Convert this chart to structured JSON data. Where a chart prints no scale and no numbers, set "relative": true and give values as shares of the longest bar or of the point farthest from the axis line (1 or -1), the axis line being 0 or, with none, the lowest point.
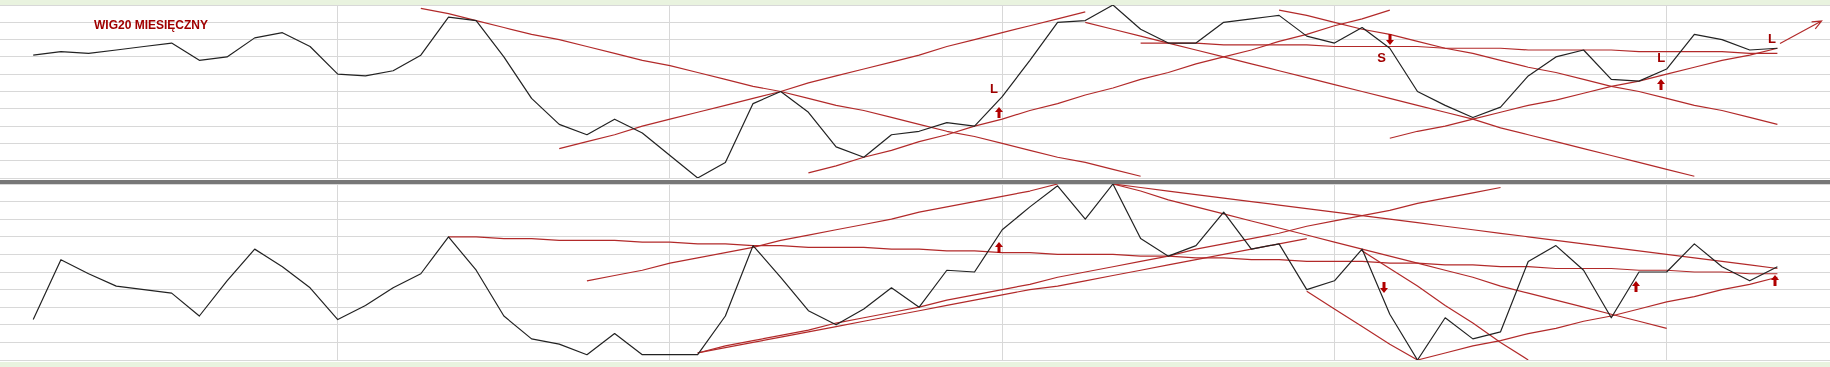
{
  "chart_data": [
    {
      "type": "line",
      "title": "WIG20  MIESIĘCZNY",
      "relative": true,
      "grid": true,
      "legend": false,
      "marker": "none",
      "categories": [
        null,
        null,
        null,
        null,
        null,
        null,
        null,
        null,
        null,
        null,
        null,
        null,
        null,
        null,
        null,
        null,
        null,
        null,
        null,
        null,
        null,
        null,
        null,
        null,
        null,
        null,
        null,
        null,
        null,
        null,
        null,
        null,
        null,
        null,
        null,
        null,
        null,
        null,
        null,
        null,
        null,
        null,
        null,
        null,
        null,
        null,
        null,
        null,
        null,
        null,
        null,
        null,
        null,
        null,
        null,
        null,
        null,
        null,
        null,
        null,
        null,
        null,
        null,
        null
      ],
      "series": [
        {
          "color": "#222222",
          "values": [
            0.71,
            0.73,
            0.72,
            0.74,
            0.76,
            0.78,
            0.68,
            0.7,
            0.81,
            0.84,
            0.76,
            0.6,
            0.59,
            0.62,
            0.71,
            0.93,
            0.91,
            0.7,
            0.46,
            0.31,
            0.25,
            0.34,
            0.26,
            0.13,
            0,
            0.09,
            0.43,
            0.5,
            0.38,
            0.18,
            0.12,
            0.25,
            0.27,
            0.32,
            0.3,
            0.47,
            0.68,
            0.9,
            0.91,
            1,
            0.86,
            0.78,
            0.78,
            0.9,
            0.92,
            0.94,
            0.82,
            0.78,
            0.87,
            0.75,
            0.5,
            0.42,
            0.35,
            0.41,
            0.59,
            0.7,
            0.74,
            0.57,
            0.56,
            0.63,
            0.83,
            0.8,
            0.74,
            0.75
          ]
        },
        {
          "type": "line",
          "color": "#b22a2a",
          "values": [
            null,
            null,
            null,
            null,
            null,
            null,
            null,
            null,
            null,
            null,
            null,
            null,
            null,
            null,
            0.98,
            0.95,
            0.91,
            0.87,
            0.83,
            0.8,
            0.76,
            0.72,
            0.68,
            0.65,
            0.61,
            0.57,
            0.53,
            0.5,
            0.46,
            0.42,
            0.39,
            0.35,
            0.31,
            0.27,
            0.24,
            0.2,
            0.16,
            0.12,
            0.09,
            0.05,
            0.01,
            null,
            null,
            null,
            null,
            null,
            null,
            null,
            null,
            null,
            null,
            null,
            null,
            null,
            null,
            null,
            null,
            null,
            null,
            null,
            null,
            null,
            null,
            null
          ]
        },
        {
          "type": "line",
          "color": "#b22a2a",
          "values": [
            null,
            null,
            null,
            null,
            null,
            null,
            null,
            null,
            null,
            null,
            null,
            null,
            null,
            null,
            null,
            null,
            null,
            null,
            null,
            0.17,
            0.21,
            0.25,
            0.3,
            0.34,
            0.38,
            0.42,
            0.46,
            0.5,
            0.55,
            0.59,
            0.63,
            0.67,
            0.71,
            0.76,
            0.8,
            0.84,
            0.88,
            0.92,
            0.96,
            null,
            null,
            null,
            null,
            null,
            null,
            null,
            null,
            null,
            null,
            null,
            null,
            null,
            null,
            null,
            null,
            null,
            null,
            null,
            null,
            null,
            null,
            null,
            null,
            null
          ]
        },
        {
          "type": "line",
          "color": "#b22a2a",
          "values": [
            null,
            null,
            null,
            null,
            null,
            null,
            null,
            null,
            null,
            null,
            null,
            null,
            null,
            null,
            null,
            null,
            null,
            null,
            null,
            null,
            null,
            null,
            null,
            null,
            null,
            null,
            null,
            null,
            0.03,
            0.07,
            0.12,
            0.16,
            0.21,
            0.25,
            0.3,
            0.34,
            0.39,
            0.43,
            0.48,
            0.52,
            0.57,
            0.61,
            0.66,
            0.7,
            0.74,
            0.79,
            0.83,
            0.88,
            0.92,
            0.97,
            null,
            null,
            null,
            null,
            null,
            null,
            null,
            null,
            null,
            null,
            null,
            null,
            null,
            null
          ]
        },
        {
          "type": "line",
          "color": "#b22a2a",
          "values": [
            null,
            null,
            null,
            null,
            null,
            null,
            null,
            null,
            null,
            null,
            null,
            null,
            null,
            null,
            null,
            null,
            null,
            null,
            null,
            null,
            null,
            null,
            null,
            null,
            null,
            null,
            null,
            null,
            null,
            null,
            null,
            null,
            null,
            null,
            null,
            null,
            null,
            null,
            0.9,
            0.86,
            0.82,
            0.78,
            0.74,
            0.7,
            0.66,
            0.62,
            0.58,
            0.54,
            0.5,
            0.46,
            0.42,
            0.38,
            0.34,
            0.29,
            0.25,
            0.21,
            0.17,
            0.13,
            0.09,
            0.05,
            0.01,
            null,
            null,
            null
          ]
        },
        {
          "type": "line",
          "color": "#b22a2a",
          "values": [
            null,
            null,
            null,
            null,
            null,
            null,
            null,
            null,
            null,
            null,
            null,
            null,
            null,
            null,
            null,
            null,
            null,
            null,
            null,
            null,
            null,
            null,
            null,
            null,
            null,
            null,
            null,
            null,
            null,
            null,
            null,
            null,
            null,
            null,
            null,
            null,
            null,
            null,
            null,
            null,
            null,
            null,
            null,
            null,
            null,
            0.97,
            0.94,
            0.9,
            0.86,
            0.83,
            0.79,
            0.75,
            0.72,
            0.68,
            0.64,
            0.61,
            0.57,
            0.53,
            0.5,
            0.46,
            0.42,
            0.39,
            0.35,
            0.31
          ]
        },
        {
          "type": "line",
          "color": "#b22a2a",
          "values": [
            null,
            null,
            null,
            null,
            null,
            null,
            null,
            null,
            null,
            null,
            null,
            null,
            null,
            null,
            null,
            null,
            null,
            null,
            null,
            null,
            null,
            null,
            null,
            null,
            null,
            null,
            null,
            null,
            null,
            null,
            null,
            null,
            null,
            null,
            null,
            null,
            null,
            null,
            null,
            null,
            0.78,
            0.78,
            0.78,
            0.77,
            0.77,
            0.77,
            0.77,
            0.76,
            0.76,
            0.76,
            0.76,
            0.75,
            0.75,
            0.75,
            0.74,
            0.74,
            0.74,
            0.74,
            0.73,
            0.73,
            0.73,
            0.73,
            0.72,
            0.72
          ]
        },
        {
          "type": "line",
          "color": "#b22a2a",
          "values": [
            null,
            null,
            null,
            null,
            null,
            null,
            null,
            null,
            null,
            null,
            null,
            null,
            null,
            null,
            null,
            null,
            null,
            null,
            null,
            null,
            null,
            null,
            null,
            null,
            null,
            null,
            null,
            null,
            null,
            null,
            null,
            null,
            null,
            null,
            null,
            null,
            null,
            null,
            null,
            null,
            null,
            null,
            null,
            null,
            null,
            null,
            null,
            null,
            null,
            0.23,
            0.27,
            0.3,
            0.34,
            0.38,
            0.42,
            0.45,
            0.49,
            0.53,
            0.56,
            0.6,
            0.64,
            0.68,
            0.71,
            0.75
          ]
        }
      ],
      "annotations": [
        "L",
        "S",
        "L",
        "L"
      ]
    },
    {
      "type": "line",
      "relative": true,
      "grid": true,
      "legend": false,
      "marker": "none",
      "categories": [
        null,
        null,
        null,
        null,
        null,
        null,
        null,
        null,
        null,
        null,
        null,
        null,
        null,
        null,
        null,
        null,
        null,
        null,
        null,
        null,
        null,
        null,
        null,
        null,
        null,
        null,
        null,
        null,
        null,
        null,
        null,
        null,
        null,
        null,
        null,
        null,
        null,
        null,
        null,
        null,
        null,
        null,
        null,
        null,
        null,
        null,
        null,
        null,
        null,
        null,
        null,
        null,
        null,
        null,
        null,
        null,
        null,
        null,
        null,
        null,
        null,
        null,
        null,
        null
      ],
      "series": [
        {
          "color": "#222222",
          "values": [
            0.23,
            0.57,
            0.49,
            0.42,
            0.4,
            0.38,
            0.25,
            0.45,
            0.63,
            0.53,
            0.41,
            0.23,
            0.31,
            0.41,
            0.49,
            0.7,
            0.51,
            0.25,
            0.12,
            0.09,
            0.03,
            0.15,
            0.03,
            0.03,
            0.03,
            0.25,
            0.65,
            0.47,
            0.28,
            0.2,
            0.29,
            0.41,
            0.3,
            0.51,
            0.5,
            0.74,
            0.87,
            0.99,
            0.8,
            1,
            0.69,
            0.59,
            0.65,
            0.84,
            0.63,
            0.66,
            0.4,
            0.45,
            0.63,
            0.26,
            0,
            0.24,
            0.12,
            0.16,
            0.56,
            0.65,
            0.51,
            0.24,
            0.5,
            0.5,
            0.66,
            0.53,
            0.45,
            0.53
          ]
        },
        {
          "type": "line",
          "color": "#b22a2a",
          "values": [
            null,
            null,
            null,
            null,
            null,
            null,
            null,
            null,
            null,
            null,
            null,
            null,
            null,
            null,
            null,
            0.7,
            0.7,
            0.69,
            0.69,
            0.68,
            0.68,
            0.68,
            0.67,
            0.67,
            0.66,
            0.66,
            0.65,
            0.65,
            0.64,
            0.64,
            0.64,
            0.63,
            0.63,
            0.62,
            0.62,
            0.61,
            0.61,
            0.6,
            0.6,
            0.6,
            0.59,
            0.59,
            0.58,
            0.58,
            0.57,
            0.57,
            0.56,
            0.56,
            0.56,
            0.55,
            0.55,
            0.54,
            0.54,
            0.53,
            0.53,
            0.52,
            0.52,
            0.52,
            0.51,
            0.51,
            0.5,
            0.5,
            0.49,
            0.49
          ]
        },
        {
          "type": "line",
          "color": "#b22a2a",
          "values": [
            null,
            null,
            null,
            null,
            null,
            null,
            null,
            null,
            null,
            null,
            null,
            null,
            null,
            null,
            null,
            null,
            null,
            null,
            null,
            null,
            0.45,
            0.48,
            0.51,
            0.55,
            0.58,
            0.61,
            0.64,
            0.68,
            0.71,
            0.74,
            0.77,
            0.8,
            0.84,
            0.87,
            0.9,
            0.93,
            0.96,
            1.0,
            null,
            null,
            null,
            null,
            null,
            null,
            null,
            null,
            null,
            null,
            null,
            null,
            null,
            null,
            null,
            null,
            null,
            null,
            null,
            null,
            null,
            null,
            null,
            null,
            null,
            null
          ]
        },
        {
          "type": "line",
          "color": "#b22a2a",
          "values": [
            null,
            null,
            null,
            null,
            null,
            null,
            null,
            null,
            null,
            null,
            null,
            null,
            null,
            null,
            null,
            null,
            null,
            null,
            null,
            null,
            null,
            null,
            null,
            null,
            0.04,
            0.07,
            0.1,
            0.13,
            0.16,
            0.19,
            0.22,
            0.25,
            0.28,
            0.31,
            0.34,
            0.37,
            0.4,
            0.42,
            0.45,
            0.48,
            0.51,
            0.54,
            0.57,
            0.6,
            0.63,
            0.66,
            0.69,
            null,
            null,
            null,
            null,
            null,
            null,
            null,
            null,
            null,
            null,
            null,
            null,
            null,
            null,
            null,
            null,
            null
          ]
        },
        {
          "type": "line",
          "color": "#b22a2a",
          "values": [
            null,
            null,
            null,
            null,
            null,
            null,
            null,
            null,
            null,
            null,
            null,
            null,
            null,
            null,
            null,
            null,
            null,
            null,
            null,
            null,
            null,
            null,
            null,
            null,
            0.04,
            0.08,
            0.11,
            0.14,
            0.17,
            0.21,
            0.24,
            0.27,
            0.3,
            0.34,
            0.37,
            0.4,
            0.43,
            0.47,
            0.5,
            0.53,
            0.56,
            0.59,
            0.63,
            0.66,
            0.69,
            0.72,
            0.76,
            0.79,
            0.82,
            0.85,
            0.89,
            0.92,
            0.95,
            0.98,
            null,
            null,
            null,
            null,
            null,
            null,
            null,
            null,
            null,
            null
          ]
        },
        {
          "type": "line",
          "color": "#b22a2a",
          "values": [
            null,
            null,
            null,
            null,
            null,
            null,
            null,
            null,
            null,
            null,
            null,
            null,
            null,
            null,
            null,
            null,
            null,
            null,
            null,
            null,
            null,
            null,
            null,
            null,
            null,
            null,
            null,
            null,
            null,
            null,
            null,
            null,
            null,
            null,
            null,
            null,
            null,
            null,
            null,
            1.0,
            0.98,
            0.96,
            0.94,
            0.92,
            0.9,
            0.88,
            0.86,
            0.84,
            0.82,
            0.8,
            0.78,
            0.76,
            0.74,
            0.72,
            0.7,
            0.68,
            0.66,
            0.64,
            0.62,
            0.6,
            0.58,
            0.56,
            0.54,
            0.52
          ]
        },
        {
          "type": "line",
          "color": "#b22a2a",
          "values": [
            null,
            null,
            null,
            null,
            null,
            null,
            null,
            null,
            null,
            null,
            null,
            null,
            null,
            null,
            null,
            null,
            null,
            null,
            null,
            null,
            null,
            null,
            null,
            null,
            null,
            null,
            null,
            null,
            null,
            null,
            null,
            null,
            null,
            null,
            null,
            null,
            null,
            null,
            null,
            1.0,
            0.96,
            0.91,
            0.87,
            0.83,
            0.79,
            0.75,
            0.71,
            0.67,
            0.63,
            0.59,
            0.55,
            0.51,
            0.47,
            0.42,
            0.38,
            0.34,
            0.3,
            0.26,
            0.22,
            0.18,
            null,
            null,
            null,
            null
          ]
        },
        {
          "type": "line",
          "color": "#b22a2a",
          "values": [
            null,
            null,
            null,
            null,
            null,
            null,
            null,
            null,
            null,
            null,
            null,
            null,
            null,
            null,
            null,
            null,
            null,
            null,
            null,
            null,
            null,
            null,
            null,
            null,
            null,
            null,
            null,
            null,
            null,
            null,
            null,
            null,
            null,
            null,
            null,
            null,
            null,
            null,
            null,
            null,
            null,
            null,
            null,
            null,
            null,
            null,
            null,
            null,
            0.62,
            0.52,
            0.42,
            0.31,
            0.21,
            0.1,
            0,
            null,
            null,
            null,
            null,
            null,
            null,
            null,
            null,
            null
          ]
        },
        {
          "type": "line",
          "color": "#b22a2a",
          "values": [
            null,
            null,
            null,
            null,
            null,
            null,
            null,
            null,
            null,
            null,
            null,
            null,
            null,
            null,
            null,
            null,
            null,
            null,
            null,
            null,
            null,
            null,
            null,
            null,
            null,
            null,
            null,
            null,
            null,
            null,
            null,
            null,
            null,
            null,
            null,
            null,
            null,
            null,
            null,
            null,
            null,
            null,
            null,
            null,
            null,
            null,
            0.39,
            0.29,
            0.19,
            0.09,
            0,
            null,
            null,
            null,
            null,
            null,
            null,
            null,
            null,
            null,
            null,
            null,
            null,
            null
          ]
        },
        {
          "type": "line",
          "color": "#b22a2a",
          "values": [
            null,
            null,
            null,
            null,
            null,
            null,
            null,
            null,
            null,
            null,
            null,
            null,
            null,
            null,
            null,
            null,
            null,
            null,
            null,
            null,
            null,
            null,
            null,
            null,
            null,
            null,
            null,
            null,
            null,
            null,
            null,
            null,
            null,
            null,
            null,
            null,
            null,
            null,
            null,
            null,
            null,
            null,
            null,
            null,
            null,
            null,
            null,
            null,
            null,
            null,
            0,
            0.04,
            0.08,
            0.11,
            0.15,
            0.18,
            0.22,
            0.25,
            0.29,
            0.33,
            0.36,
            0.4,
            0.43,
            0.47
          ]
        }
      ]
    }
  ]
}
